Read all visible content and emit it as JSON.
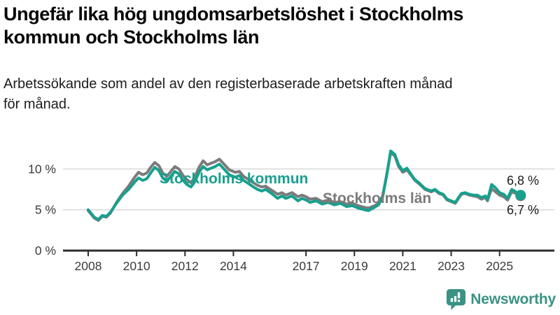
{
  "header": {
    "title_lines": [
      "Ungefär lika hög ungdomsarbetslöshet i Stockholms",
      "kommun och Stockholms län"
    ],
    "subtitle_lines": [
      "Arbetssökande som andel av den registerbaserade arbetskraften månad",
      "för månad."
    ]
  },
  "colors": {
    "kommun": "#18a08e",
    "lan": "#7b7b7b",
    "axis": "#2e2e2e",
    "grid": "#d9d9d9",
    "tick_text": "#3b3b3b",
    "end_label_text": "#1c1c1c",
    "logo": "#3a9284"
  },
  "chart_data": {
    "type": "line",
    "title": "Ungefär lika hög ungdomsarbetslöshet i Stockholms kommun och Stockholms län",
    "subtitle": "Arbetssökande som andel av den registerbaserade arbetskraften månad för månad.",
    "unit": "%",
    "x_ticks": [
      {
        "value": 2008,
        "label": "2008"
      },
      {
        "value": 2010,
        "label": "2010"
      },
      {
        "value": 2012,
        "label": "2012"
      },
      {
        "value": 2014,
        "label": "2014"
      },
      {
        "value": 2017,
        "label": "2017"
      },
      {
        "value": 2019,
        "label": "2019"
      },
      {
        "value": 2021,
        "label": "2021"
      },
      {
        "value": 2023,
        "label": "2023"
      },
      {
        "value": 2025,
        "label": "2025"
      }
    ],
    "y_ticks": [
      {
        "value": 0,
        "label": "0 %"
      },
      {
        "value": 5,
        "label": "5 %"
      },
      {
        "value": 10,
        "label": "10 %"
      }
    ],
    "y_gridlines": [
      5,
      10
    ],
    "ylim": [
      0,
      13
    ],
    "xlim": [
      2006.9,
      2027.2
    ],
    "legend_position": "inline",
    "grid": "horizontal-only",
    "series": [
      {
        "name": "Stockholms län",
        "color": "#7b7b7b",
        "end_value_label": "6,7 %",
        "points": [
          [
            2008.0,
            4.9
          ],
          [
            2008.25,
            4.0
          ],
          [
            2008.42,
            3.7
          ],
          [
            2008.58,
            4.2
          ],
          [
            2008.75,
            4.1
          ],
          [
            2008.92,
            4.6
          ],
          [
            2009.17,
            5.9
          ],
          [
            2009.42,
            7.0
          ],
          [
            2009.67,
            7.9
          ],
          [
            2009.92,
            9.0
          ],
          [
            2010.08,
            9.6
          ],
          [
            2010.25,
            9.3
          ],
          [
            2010.42,
            9.5
          ],
          [
            2010.58,
            10.2
          ],
          [
            2010.75,
            10.8
          ],
          [
            2010.92,
            10.4
          ],
          [
            2011.08,
            9.5
          ],
          [
            2011.25,
            9.1
          ],
          [
            2011.42,
            9.7
          ],
          [
            2011.58,
            10.3
          ],
          [
            2011.75,
            10.0
          ],
          [
            2011.92,
            9.2
          ],
          [
            2012.08,
            8.7
          ],
          [
            2012.25,
            8.3
          ],
          [
            2012.42,
            9.1
          ],
          [
            2012.58,
            10.2
          ],
          [
            2012.75,
            11.0
          ],
          [
            2012.92,
            10.5
          ],
          [
            2013.08,
            10.7
          ],
          [
            2013.25,
            10.9
          ],
          [
            2013.42,
            11.2
          ],
          [
            2013.58,
            10.7
          ],
          [
            2013.83,
            9.9
          ],
          [
            2014.08,
            9.6
          ],
          [
            2014.25,
            9.7
          ],
          [
            2014.42,
            9.1
          ],
          [
            2014.58,
            8.8
          ],
          [
            2014.83,
            8.3
          ],
          [
            2015.0,
            8.0
          ],
          [
            2015.17,
            7.8
          ],
          [
            2015.33,
            7.9
          ],
          [
            2015.58,
            7.4
          ],
          [
            2015.83,
            6.9
          ],
          [
            2016.0,
            7.1
          ],
          [
            2016.17,
            6.8
          ],
          [
            2016.42,
            7.1
          ],
          [
            2016.67,
            6.6
          ],
          [
            2016.83,
            6.8
          ],
          [
            2017.0,
            6.6
          ],
          [
            2017.17,
            6.3
          ],
          [
            2017.42,
            6.4
          ],
          [
            2017.67,
            6.0
          ],
          [
            2017.92,
            6.2
          ],
          [
            2018.17,
            5.9
          ],
          [
            2018.42,
            6.0
          ],
          [
            2018.67,
            5.7
          ],
          [
            2018.92,
            5.8
          ],
          [
            2019.17,
            5.5
          ],
          [
            2019.42,
            5.3
          ],
          [
            2019.58,
            5.2
          ],
          [
            2019.83,
            5.5
          ],
          [
            2020.0,
            5.8
          ],
          [
            2020.17,
            6.7
          ],
          [
            2020.33,
            9.2
          ],
          [
            2020.5,
            12.0
          ],
          [
            2020.67,
            11.6
          ],
          [
            2020.83,
            10.3
          ],
          [
            2021.0,
            9.6
          ],
          [
            2021.17,
            9.9
          ],
          [
            2021.33,
            9.3
          ],
          [
            2021.5,
            8.6
          ],
          [
            2021.67,
            8.2
          ],
          [
            2021.92,
            7.5
          ],
          [
            2022.17,
            7.2
          ],
          [
            2022.33,
            7.4
          ],
          [
            2022.5,
            7.0
          ],
          [
            2022.67,
            6.8
          ],
          [
            2022.83,
            6.2
          ],
          [
            2023.0,
            6.0
          ],
          [
            2023.17,
            5.8
          ],
          [
            2023.42,
            6.9
          ],
          [
            2023.58,
            7.0
          ],
          [
            2023.75,
            6.8
          ],
          [
            2023.92,
            6.7
          ],
          [
            2024.08,
            6.6
          ],
          [
            2024.25,
            6.3
          ],
          [
            2024.42,
            6.5
          ],
          [
            2024.5,
            6.1
          ],
          [
            2024.67,
            7.6
          ],
          [
            2024.83,
            7.2
          ],
          [
            2025.0,
            6.8
          ],
          [
            2025.17,
            6.6
          ],
          [
            2025.33,
            6.2
          ],
          [
            2025.5,
            7.2
          ],
          [
            2025.67,
            7.0
          ],
          [
            2025.87,
            6.7
          ]
        ]
      },
      {
        "name": "Stockholms kommun",
        "color": "#18a08e",
        "end_value_label": "6,8 %",
        "points": [
          [
            2008.0,
            5.0
          ],
          [
            2008.25,
            4.1
          ],
          [
            2008.42,
            3.8
          ],
          [
            2008.58,
            4.3
          ],
          [
            2008.75,
            4.2
          ],
          [
            2008.92,
            4.7
          ],
          [
            2009.17,
            5.8
          ],
          [
            2009.42,
            6.8
          ],
          [
            2009.67,
            7.5
          ],
          [
            2009.92,
            8.4
          ],
          [
            2010.08,
            8.9
          ],
          [
            2010.25,
            8.6
          ],
          [
            2010.42,
            8.8
          ],
          [
            2010.58,
            9.5
          ],
          [
            2010.75,
            10.2
          ],
          [
            2010.92,
            9.8
          ],
          [
            2011.08,
            8.9
          ],
          [
            2011.25,
            8.5
          ],
          [
            2011.42,
            9.1
          ],
          [
            2011.58,
            9.7
          ],
          [
            2011.75,
            9.4
          ],
          [
            2011.92,
            8.6
          ],
          [
            2012.08,
            8.1
          ],
          [
            2012.25,
            7.8
          ],
          [
            2012.42,
            8.5
          ],
          [
            2012.58,
            9.6
          ],
          [
            2012.75,
            10.3
          ],
          [
            2012.92,
            9.9
          ],
          [
            2013.08,
            10.1
          ],
          [
            2013.25,
            10.3
          ],
          [
            2013.42,
            10.6
          ],
          [
            2013.58,
            10.1
          ],
          [
            2013.83,
            9.3
          ],
          [
            2014.08,
            9.0
          ],
          [
            2014.25,
            9.2
          ],
          [
            2014.42,
            8.6
          ],
          [
            2014.58,
            8.3
          ],
          [
            2014.83,
            7.8
          ],
          [
            2015.0,
            7.5
          ],
          [
            2015.17,
            7.3
          ],
          [
            2015.33,
            7.5
          ],
          [
            2015.58,
            7.0
          ],
          [
            2015.83,
            6.4
          ],
          [
            2016.0,
            6.7
          ],
          [
            2016.17,
            6.4
          ],
          [
            2016.42,
            6.7
          ],
          [
            2016.67,
            6.1
          ],
          [
            2016.83,
            6.4
          ],
          [
            2017.0,
            6.2
          ],
          [
            2017.17,
            5.9
          ],
          [
            2017.42,
            6.1
          ],
          [
            2017.67,
            5.7
          ],
          [
            2017.92,
            5.9
          ],
          [
            2018.17,
            5.6
          ],
          [
            2018.42,
            5.8
          ],
          [
            2018.67,
            5.4
          ],
          [
            2018.92,
            5.5
          ],
          [
            2019.17,
            5.2
          ],
          [
            2019.42,
            5.0
          ],
          [
            2019.58,
            4.9
          ],
          [
            2019.83,
            5.3
          ],
          [
            2020.0,
            5.6
          ],
          [
            2020.17,
            6.6
          ],
          [
            2020.33,
            9.1
          ],
          [
            2020.5,
            12.2
          ],
          [
            2020.67,
            11.8
          ],
          [
            2020.83,
            10.5
          ],
          [
            2021.0,
            9.8
          ],
          [
            2021.17,
            10.1
          ],
          [
            2021.33,
            9.4
          ],
          [
            2021.5,
            8.7
          ],
          [
            2021.67,
            8.3
          ],
          [
            2021.92,
            7.6
          ],
          [
            2022.17,
            7.3
          ],
          [
            2022.33,
            7.5
          ],
          [
            2022.5,
            7.1
          ],
          [
            2022.67,
            6.9
          ],
          [
            2022.83,
            6.3
          ],
          [
            2023.0,
            6.1
          ],
          [
            2023.17,
            5.9
          ],
          [
            2023.42,
            7.0
          ],
          [
            2023.58,
            7.1
          ],
          [
            2023.75,
            6.9
          ],
          [
            2023.92,
            6.8
          ],
          [
            2024.08,
            6.8
          ],
          [
            2024.25,
            6.5
          ],
          [
            2024.42,
            6.7
          ],
          [
            2024.5,
            6.2
          ],
          [
            2024.67,
            8.1
          ],
          [
            2024.83,
            7.7
          ],
          [
            2025.0,
            7.1
          ],
          [
            2025.17,
            6.9
          ],
          [
            2025.33,
            6.4
          ],
          [
            2025.5,
            7.5
          ],
          [
            2025.67,
            7.2
          ],
          [
            2025.87,
            6.8
          ]
        ]
      }
    ],
    "inline_labels": [
      {
        "text": "Stockholms kommun",
        "series": "Stockholms kommun",
        "color": "#18a08e"
      },
      {
        "text": "Stockholms län",
        "series": "Stockholms län",
        "color": "#7b7b7b"
      }
    ],
    "end_labels": [
      {
        "text": "6,8 %",
        "series": "Stockholms kommun"
      },
      {
        "text": "6,7 %",
        "series": "Stockholms län"
      }
    ]
  },
  "logo": {
    "text": "Newsworthy",
    "icon": "bar-chart-speech-bubble"
  }
}
